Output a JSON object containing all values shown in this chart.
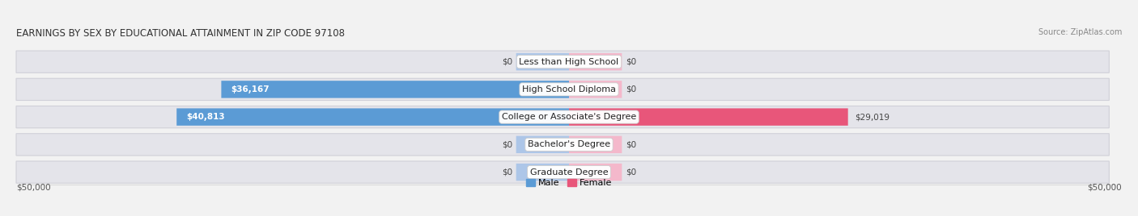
{
  "title": "EARNINGS BY SEX BY EDUCATIONAL ATTAINMENT IN ZIP CODE 97108",
  "source": "Source: ZipAtlas.com",
  "categories": [
    "Less than High School",
    "High School Diploma",
    "College or Associate's Degree",
    "Bachelor's Degree",
    "Graduate Degree"
  ],
  "male_values": [
    0,
    36167,
    40813,
    0,
    0
  ],
  "female_values": [
    0,
    0,
    29019,
    0,
    0
  ],
  "max_value": 50000,
  "male_color_stub": "#adc6e8",
  "male_color_full": "#5b9bd5",
  "female_color_stub": "#f4b8cb",
  "female_color_full": "#e8567a",
  "bg_color": "#f2f2f2",
  "bar_bg_color": "#e4e4ea",
  "bar_bg_shadow": "#d0d0d8",
  "male_legend_color": "#5b9bd5",
  "female_legend_color": "#e8567a",
  "axis_label_left": "$50,000",
  "axis_label_right": "$50,000",
  "stub_size": 5500
}
